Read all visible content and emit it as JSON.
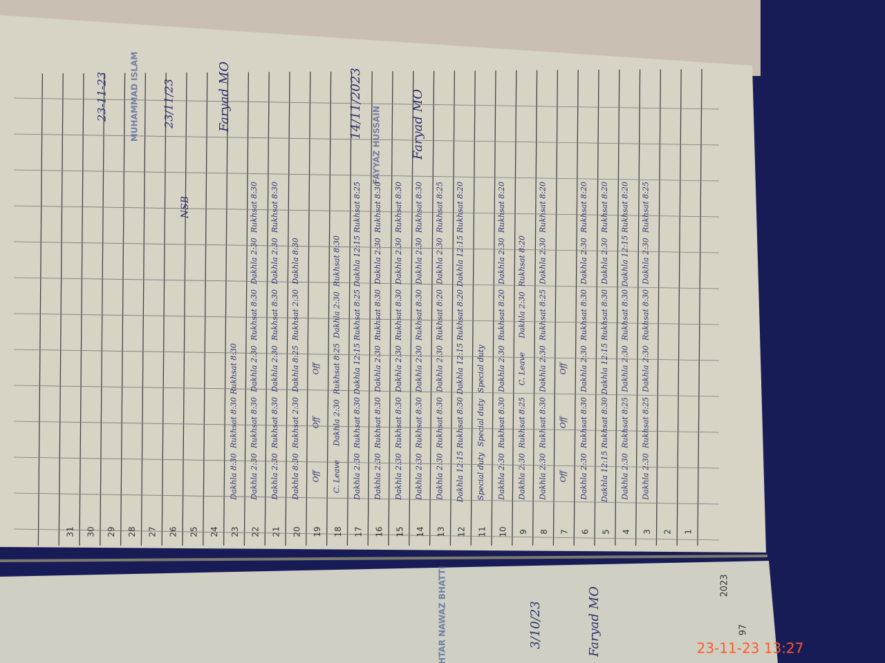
{
  "timestamp": "23-11-23  13:27",
  "page_number": "97",
  "year": "2023",
  "row_numbers": [
    1,
    2,
    3,
    4,
    5,
    6,
    7,
    8,
    9,
    10,
    11,
    12,
    13,
    14,
    15,
    16,
    17,
    18,
    19,
    20,
    21,
    22,
    23,
    24,
    25,
    26,
    27,
    28,
    29,
    30,
    31
  ],
  "rows": [
    {
      "number": 3,
      "entries": [
        "Dakhla 2:30",
        "Rukhsat 8:25",
        "Dakhla 2:30",
        "Rukhsat 8:30",
        "Dakhla 2:30",
        "Rukhsat 8:25"
      ]
    },
    {
      "number": 4,
      "entries": [
        "Dakhla 2:30",
        "Rukhsat 8:25",
        "Dakhla 2:30",
        "Rukhsat 8:30",
        "Dakhla 12:15",
        "Rukhsat 8:20"
      ]
    },
    {
      "number": 5,
      "entries": [
        "Dakhla 12:15",
        "Rukhsat 8:30",
        "Dakhla 12:15",
        "Rukhsat 8:30",
        "Dakhla 2:30",
        "Rukhsat 8:20"
      ]
    },
    {
      "number": 6,
      "entries": [
        "Dakhla 2:30",
        "Rukhsat 8:30",
        "Dakhla 2:30",
        "Rukhsat 8:30",
        "Dakhla 2:30",
        "Rukhsat 8:20"
      ]
    },
    {
      "number": 7,
      "entries": [
        "Off",
        "Off",
        "Off"
      ]
    },
    {
      "number": 8,
      "entries": [
        "Dakhla 2:30",
        "Rukhsat 8:30",
        "Dakhla 2:30",
        "Rukhsat 8:25",
        "Dakhla 2:30",
        "Rukhsat 8:20"
      ]
    },
    {
      "number": 9,
      "entries": [
        "Dakhla 2:30",
        "Rukhsat 8:25",
        "C. Leave",
        "Dakhla 2:30",
        "Rukhsat 8:20"
      ]
    },
    {
      "number": 10,
      "entries": [
        "Dakhla 2:30",
        "Rukhsat 8:30",
        "Dakhla 2:30",
        "Rukhsat 8:20",
        "Dakhla 2:30",
        "Rukhsat 8:20"
      ]
    },
    {
      "number": 11,
      "entries": [
        "Special duty",
        "Special duty",
        "Special duty"
      ]
    },
    {
      "number": 12,
      "entries": [
        "Dakhla 12:15",
        "Rukhsat 8:30",
        "Dakhla 12:15",
        "Rukhsat 8:20",
        "Dakhla 12:15",
        "Rukhsat 8:20"
      ]
    },
    {
      "number": 13,
      "entries": [
        "Dakhla 2:30",
        "Rukhsat 8:30",
        "Dakhla 2:30",
        "Rukhsat 8:20",
        "Dakhla 2:30",
        "Rukhsat 8:25"
      ]
    },
    {
      "number": 14,
      "entries": [
        "Dakhla 2:30",
        "Rukhsat 8:30",
        "Dakhla 2:30",
        "Rukhsat 8:30",
        "Dakhla 2:30",
        "Rukhsat 8:30"
      ]
    },
    {
      "number": 15,
      "entries": [
        "Dakhla 2:30",
        "Rukhsat 8:30",
        "Dakhla 2:30",
        "Rukhsat 8:30",
        "Dakhla 2:30",
        "Rukhsat 8:30"
      ]
    },
    {
      "number": 16,
      "entries": [
        "Dakhla 2:30",
        "Rukhsat 8:30",
        "Dakhla 2:30",
        "Rukhsat 8:30",
        "Dakhla 2:30",
        "Rukhsat 8:30"
      ]
    },
    {
      "number": 17,
      "entries": [
        "Dakhla 2:30",
        "Rukhsat 8:30",
        "Dakhla 12:15",
        "Rukhsat 8:25",
        "Dakhla 12:15",
        "Rukhsat 8:25"
      ]
    },
    {
      "number": 18,
      "entries": [
        "C. Leave",
        "Dakhla 2:30",
        "Rukhsat 8:25",
        "Dakhla 2:30",
        "Rukhsat 8:30"
      ]
    },
    {
      "number": 19,
      "entries": [
        "Off",
        "Off",
        "Off"
      ]
    },
    {
      "number": 20,
      "entries": [
        "Dakhla 8:30",
        "Rukhsat 2:30",
        "Dakhla 8:25",
        "Rukhsat 2:30",
        "Dakhla 8:30"
      ]
    },
    {
      "number": 21,
      "entries": [
        "Dakhla 2:30",
        "Rukhsat 8:30",
        "Dakhla 2:30",
        "Rukhsat 8:30",
        "Dakhla 2:30",
        "Rukhsat 8:30"
      ]
    },
    {
      "number": 22,
      "entries": [
        "Dakhla 2:30",
        "Rukhsat 8:30",
        "Dakhla 2:30",
        "Rukhsat 8:30",
        "Dakhla 2:30",
        "Rukhsat 8:30"
      ]
    },
    {
      "number": 23,
      "entries": [
        "Dakhla 8:30",
        "Rukhsat 8:30",
        "Rukhsat 8:30"
      ]
    }
  ],
  "annotations": {
    "signature_1": "Faryad MO",
    "signature_2": "Faryad MO",
    "date_1": "14/11/2023",
    "date_2": "23/11/23",
    "date_3": "23-11-23",
    "code": "NSB",
    "stamp_1": "MUHAMMAD ISLAM",
    "stamp_2": "FAYYAZ HUSSAIN"
  },
  "next_page": {
    "signature": "Faryad MO",
    "date": "3/10/23",
    "stamp": "AKHTAR NAWAZ BHATTI"
  }
}
